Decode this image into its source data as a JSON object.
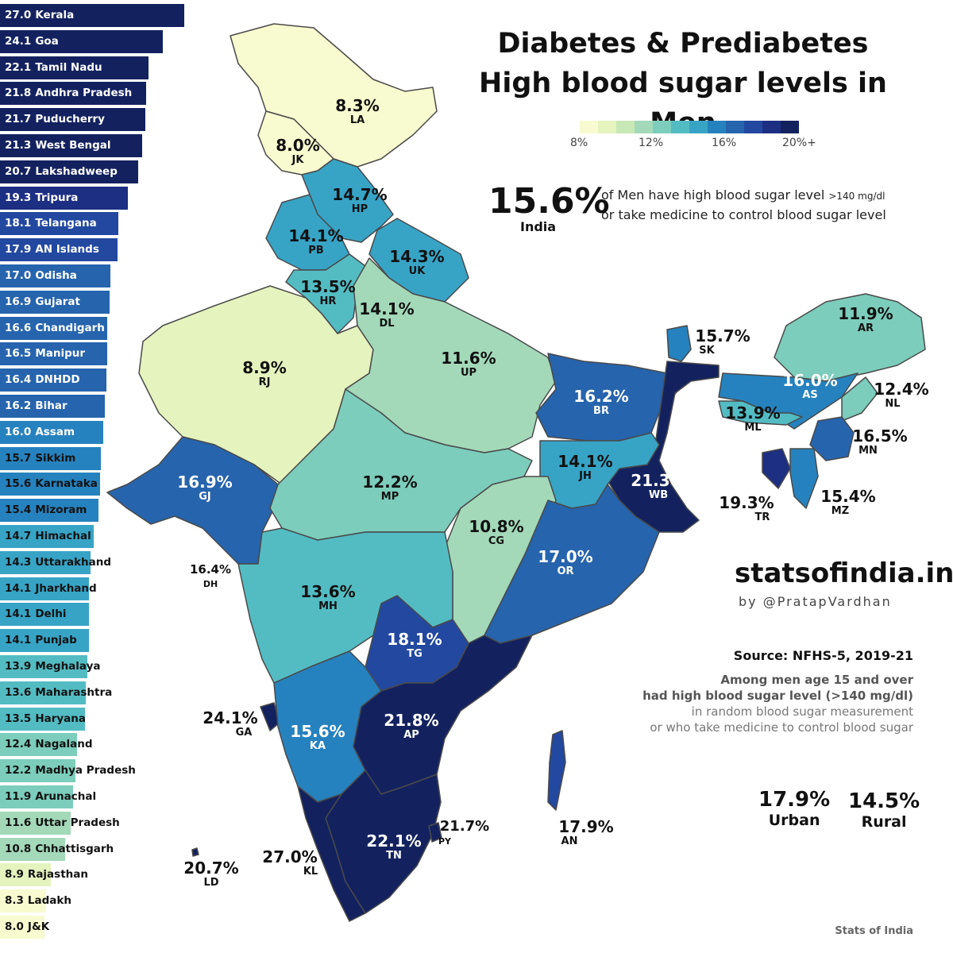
{
  "title_line1": "Diabetes & Prediabetes",
  "title_line2": "High blood sugar levels in Men",
  "legend": {
    "ticks": [
      "8%",
      "12%",
      "16%",
      "20%+"
    ],
    "colors": [
      "#f8fbcf",
      "#e5f3be",
      "#c8e8b5",
      "#a3d9b9",
      "#7ccdbb",
      "#53bcc3",
      "#37a4c6",
      "#2682be",
      "#2664ad",
      "#2348a0",
      "#1d2f83",
      "#13225f"
    ]
  },
  "india": {
    "value": "15.6%",
    "label": "India",
    "desc_line1": "of Men have high blood sugar level",
    "desc_line1_unit": ">140 mg/dl",
    "desc_line2": "or take medicine to control blood sugar level"
  },
  "brand": "statsofindia.in",
  "byline": "by @PratapVardhan",
  "source": "Source: NFHS-5, 2019-21",
  "note": {
    "line1": "Among men age 15 and over",
    "line2": "had high blood sugar level (>140 mg/dl)",
    "line3": "in random blood sugar measurement",
    "line4": "or who take medicine to control blood sugar"
  },
  "urban": {
    "value": "17.9%",
    "label": "Urban"
  },
  "rural": {
    "value": "14.5%",
    "label": "Rural"
  },
  "footer": "Stats of India",
  "ranking": [
    {
      "value": "27.0",
      "name": "Kerala"
    },
    {
      "value": "24.1",
      "name": "Goa"
    },
    {
      "value": "22.1",
      "name": "Tamil Nadu"
    },
    {
      "value": "21.8",
      "name": "Andhra Pradesh"
    },
    {
      "value": "21.7",
      "name": "Puducherry"
    },
    {
      "value": "21.3",
      "name": "West Bengal"
    },
    {
      "value": "20.7",
      "name": "Lakshadweep"
    },
    {
      "value": "19.3",
      "name": "Tripura"
    },
    {
      "value": "18.1",
      "name": "Telangana"
    },
    {
      "value": "17.9",
      "name": "AN Islands"
    },
    {
      "value": "17.0",
      "name": "Odisha"
    },
    {
      "value": "16.9",
      "name": "Gujarat"
    },
    {
      "value": "16.6",
      "name": "Chandigarh"
    },
    {
      "value": "16.5",
      "name": "Manipur"
    },
    {
      "value": "16.4",
      "name": "DNHDD"
    },
    {
      "value": "16.2",
      "name": "Bihar"
    },
    {
      "value": "16.0",
      "name": "Assam"
    },
    {
      "value": "15.7",
      "name": "Sikkim"
    },
    {
      "value": "15.6",
      "name": "Karnataka"
    },
    {
      "value": "15.4",
      "name": "Mizoram"
    },
    {
      "value": "14.7",
      "name": "Himachal"
    },
    {
      "value": "14.3",
      "name": "Uttarakhand"
    },
    {
      "value": "14.1",
      "name": "Jharkhand"
    },
    {
      "value": "14.1",
      "name": "Delhi"
    },
    {
      "value": "14.1",
      "name": "Punjab"
    },
    {
      "value": "13.9",
      "name": "Meghalaya"
    },
    {
      "value": "13.6",
      "name": "Maharashtra"
    },
    {
      "value": "13.5",
      "name": "Haryana"
    },
    {
      "value": "12.4",
      "name": "Nagaland"
    },
    {
      "value": "12.2",
      "name": "Madhya Pradesh"
    },
    {
      "value": "11.9",
      "name": "Arunachal"
    },
    {
      "value": "11.6",
      "name": "Uttar Pradesh"
    },
    {
      "value": "10.8",
      "name": "Chhattisgarh"
    },
    {
      "value": "8.9",
      "name": "Rajasthan"
    },
    {
      "value": "8.3",
      "name": "Ladakh"
    },
    {
      "value": "8.0",
      "name": "J&K"
    }
  ],
  "regions": [
    {
      "code": "LA",
      "pct": "8.3%",
      "value": 8.3
    },
    {
      "code": "JK",
      "pct": "8.0%",
      "value": 8.0
    },
    {
      "code": "HP",
      "pct": "14.7%",
      "value": 14.7
    },
    {
      "code": "PB",
      "pct": "14.1%",
      "value": 14.1
    },
    {
      "code": "UK",
      "pct": "14.3%",
      "value": 14.3
    },
    {
      "code": "HR",
      "pct": "13.5%",
      "value": 13.5
    },
    {
      "code": "DL",
      "pct": "14.1%",
      "value": 14.1
    },
    {
      "code": "RJ",
      "pct": "8.9%",
      "value": 8.9
    },
    {
      "code": "UP",
      "pct": "11.6%",
      "value": 11.6
    },
    {
      "code": "BR",
      "pct": "16.2%",
      "value": 16.2
    },
    {
      "code": "SK",
      "pct": "15.7%",
      "value": 15.7
    },
    {
      "code": "AR",
      "pct": "11.9%",
      "value": 11.9
    },
    {
      "code": "AS",
      "pct": "16.0%",
      "value": 16.0
    },
    {
      "code": "NL",
      "pct": "12.4%",
      "value": 12.4
    },
    {
      "code": "ML",
      "pct": "13.9%",
      "value": 13.9
    },
    {
      "code": "MN",
      "pct": "16.5%",
      "value": 16.5
    },
    {
      "code": "TR",
      "pct": "19.3%",
      "value": 19.3
    },
    {
      "code": "MZ",
      "pct": "15.4%",
      "value": 15.4
    },
    {
      "code": "WB",
      "pct": "21.3%",
      "value": 21.3
    },
    {
      "code": "JH",
      "pct": "14.1%",
      "value": 14.1
    },
    {
      "code": "GJ",
      "pct": "16.9%",
      "value": 16.9
    },
    {
      "code": "MP",
      "pct": "12.2%",
      "value": 12.2
    },
    {
      "code": "CG",
      "pct": "10.8%",
      "value": 10.8
    },
    {
      "code": "OR",
      "pct": "17.0%",
      "value": 17.0
    },
    {
      "code": "DH",
      "pct": "16.4%",
      "value": 16.4
    },
    {
      "code": "MH",
      "pct": "13.6%",
      "value": 13.6
    },
    {
      "code": "TG",
      "pct": "18.1%",
      "value": 18.1
    },
    {
      "code": "GA",
      "pct": "24.1%",
      "value": 24.1
    },
    {
      "code": "KA",
      "pct": "15.6%",
      "value": 15.6
    },
    {
      "code": "AP",
      "pct": "21.8%",
      "value": 21.8
    },
    {
      "code": "TN",
      "pct": "22.1%",
      "value": 22.1
    },
    {
      "code": "PY",
      "pct": "21.7%",
      "value": 21.7
    },
    {
      "code": "KL",
      "pct": "27.0%",
      "value": 27.0
    },
    {
      "code": "LD",
      "pct": "20.7%",
      "value": 20.7
    },
    {
      "code": "AN",
      "pct": "17.9%",
      "value": 17.9
    }
  ]
}
